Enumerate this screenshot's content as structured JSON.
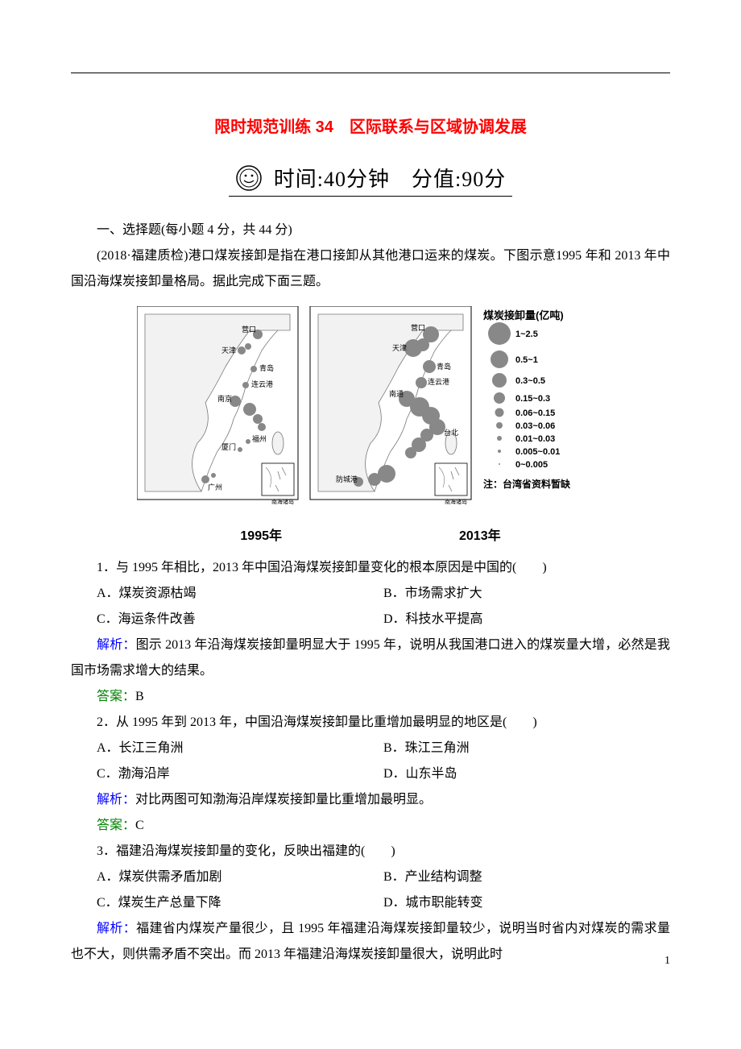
{
  "colors": {
    "title": "#ff0000",
    "analysis": "#0000ff",
    "answer": "#008000",
    "body": "#000000",
    "background": "#ffffff",
    "map_fill": "#f2f2f2",
    "map_stroke": "#777777",
    "circle_fill": "#888888"
  },
  "fonts": {
    "body_family": "SimSun",
    "title_family": "SimHei",
    "kai_family": "KaiTi",
    "body_size_pt": 12,
    "title_size_pt": 15,
    "banner_size_pt": 20
  },
  "title": "限时规范训练 34　区际联系与区域协调发展",
  "banner_text": "时间:40分钟　分值:90分",
  "section_one": "一、选择题(每小题 4 分，共 44 分)",
  "intro": "(2018·福建质检)港口煤炭接卸是指在港口接卸从其他港口运来的煤炭。下图示意1995 年和 2013 年中国沿海煤炭接卸量格局。据此完成下面三题。",
  "map_caption_left": "1995年",
  "map_caption_right": "2013年",
  "legend": {
    "title": "煤炭接卸量(亿吨)",
    "items": [
      {
        "label": "1~2.5",
        "r": 14
      },
      {
        "label": "0.5~1",
        "r": 11
      },
      {
        "label": "0.3~0.5",
        "r": 9
      },
      {
        "label": "0.15~0.3",
        "r": 7
      },
      {
        "label": "0.06~0.15",
        "r": 5.5
      },
      {
        "label": "0.03~0.06",
        "r": 4
      },
      {
        "label": "0.01~0.03",
        "r": 3
      },
      {
        "label": "0.005~0.01",
        "r": 2
      },
      {
        "label": "0~0.005",
        "r": 1
      }
    ],
    "note": "注：台湾省资料暂缺"
  },
  "map_labels_1995": [
    "营口",
    "天津",
    "青岛",
    "连云港",
    "南京",
    "宁波",
    "厦门",
    "福州",
    "广州"
  ],
  "map_labels_2013": [
    "营口",
    "天津",
    "青岛",
    "连云港",
    "南通",
    "宁波",
    "台北",
    "防城港"
  ],
  "q1": {
    "stem": "1．与 1995 年相比，2013 年中国沿海煤炭接卸量变化的根本原因是中国的(　　)",
    "A": "A．煤炭资源枯竭",
    "B": "B．市场需求扩大",
    "C": "C．海运条件改善",
    "D": "D．科技水平提高",
    "analysis_label": "解析：",
    "analysis": "图示 2013 年沿海煤炭接卸量明显大于 1995 年，说明从我国港口进入的煤炭量大增，必然是我国市场需求增大的结果。",
    "answer_label": "答案：",
    "answer": "B"
  },
  "q2": {
    "stem": "2．从 1995 年到 2013 年，中国沿海煤炭接卸量比重增加最明显的地区是(　　)",
    "A": "A．长江三角洲",
    "B": "B．珠江三角洲",
    "C": "C．渤海沿岸",
    "D": "D．山东半岛",
    "analysis_label": "解析：",
    "analysis": "对比两图可知渤海沿岸煤炭接卸量比重增加最明显。",
    "answer_label": "答案：",
    "answer": "C"
  },
  "q3": {
    "stem": "3．福建沿海煤炭接卸量的变化，反映出福建的(　　)",
    "A": "A．煤炭供需矛盾加剧",
    "B": "B．产业结构调整",
    "C": "C．煤炭生产总量下降",
    "D": "D．城市职能转变",
    "analysis_label": "解析：",
    "analysis": "福建省内煤炭产量很少，且 1995 年福建沿海煤炭接卸量较少，说明当时省内对煤炭的需求量也不大，则供需矛盾不突出。而 2013 年福建沿海煤炭接卸量很大，说明此时"
  },
  "page_number": "1"
}
